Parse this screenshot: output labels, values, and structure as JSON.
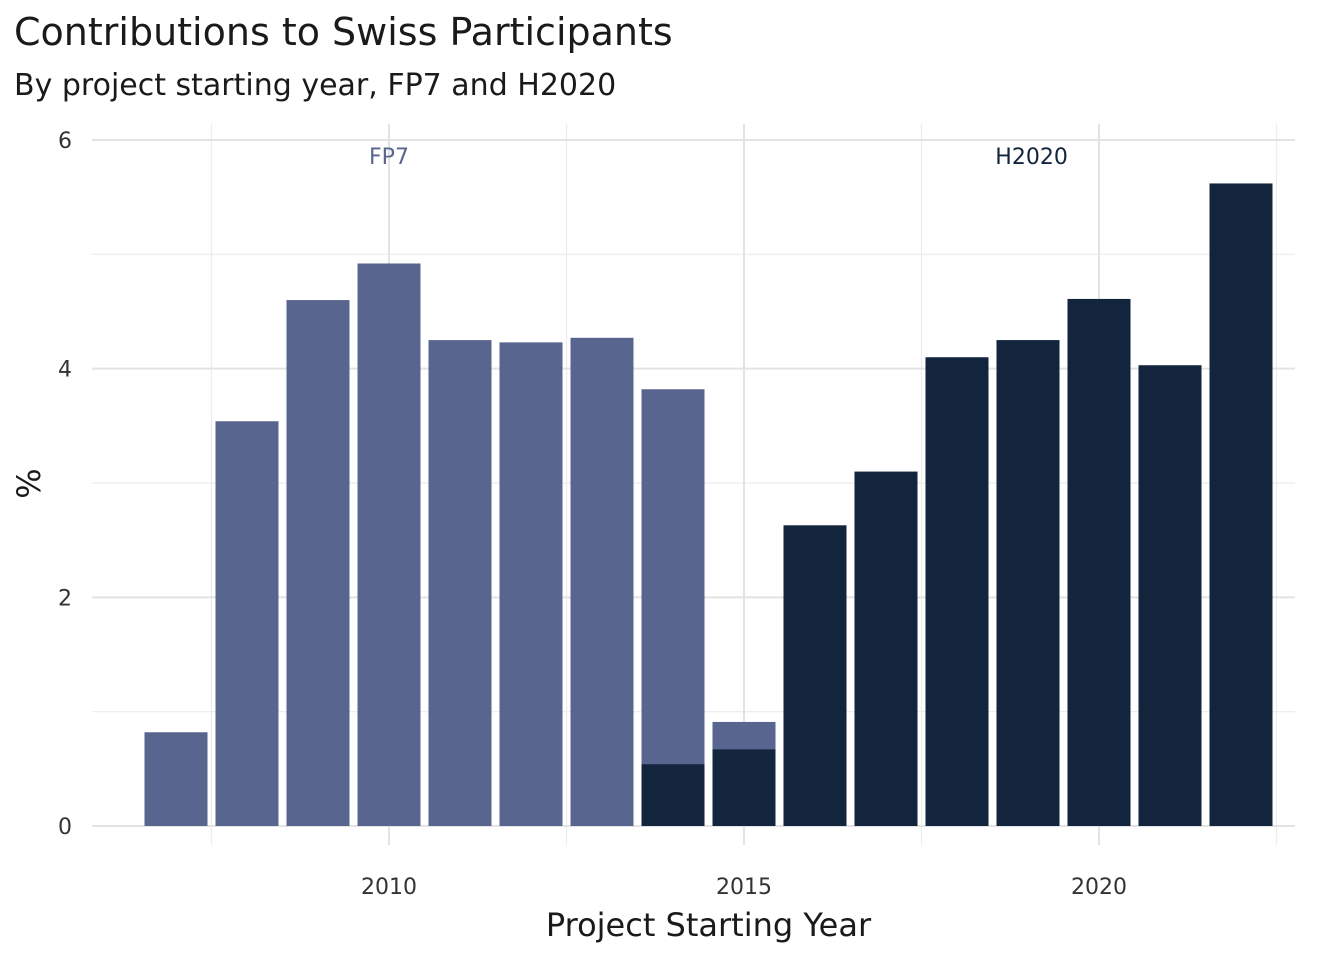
{
  "chart_data": {
    "type": "bar",
    "title": "Contributions to Swiss Participants",
    "subtitle": "By project starting year, FP7 and H2020",
    "xlabel": "Project Starting Year",
    "ylabel": "%",
    "x_ticks": [
      2010,
      2015,
      2020
    ],
    "y_ticks": [
      0,
      2,
      4,
      6
    ],
    "xlim": [
      2006.5,
      2022.5
    ],
    "ylim": [
      0,
      6.15
    ],
    "grid": true,
    "bar_stacking": "overlapping",
    "series": [
      {
        "name": "FP7",
        "color": "#58668F",
        "x": [
          2007,
          2008,
          2009,
          2010,
          2011,
          2012,
          2013,
          2014,
          2015
        ],
        "values": [
          0.82,
          3.54,
          4.6,
          4.92,
          4.25,
          4.23,
          4.27,
          3.82,
          0.91
        ]
      },
      {
        "name": "H2020",
        "color": "#12253C",
        "x": [
          2014,
          2015,
          2016,
          2017,
          2018,
          2019,
          2020,
          2021,
          2022
        ],
        "values": [
          0.54,
          0.67,
          2.63,
          3.1,
          4.1,
          4.25,
          4.61,
          4.03,
          5.62
        ]
      }
    ],
    "annotations": [
      {
        "text": "FP7",
        "x": 2010,
        "y": 5.85,
        "color": "#58668F"
      },
      {
        "text": "H2020",
        "x": 2019.05,
        "y": 5.85,
        "color": "#12253C"
      }
    ]
  }
}
